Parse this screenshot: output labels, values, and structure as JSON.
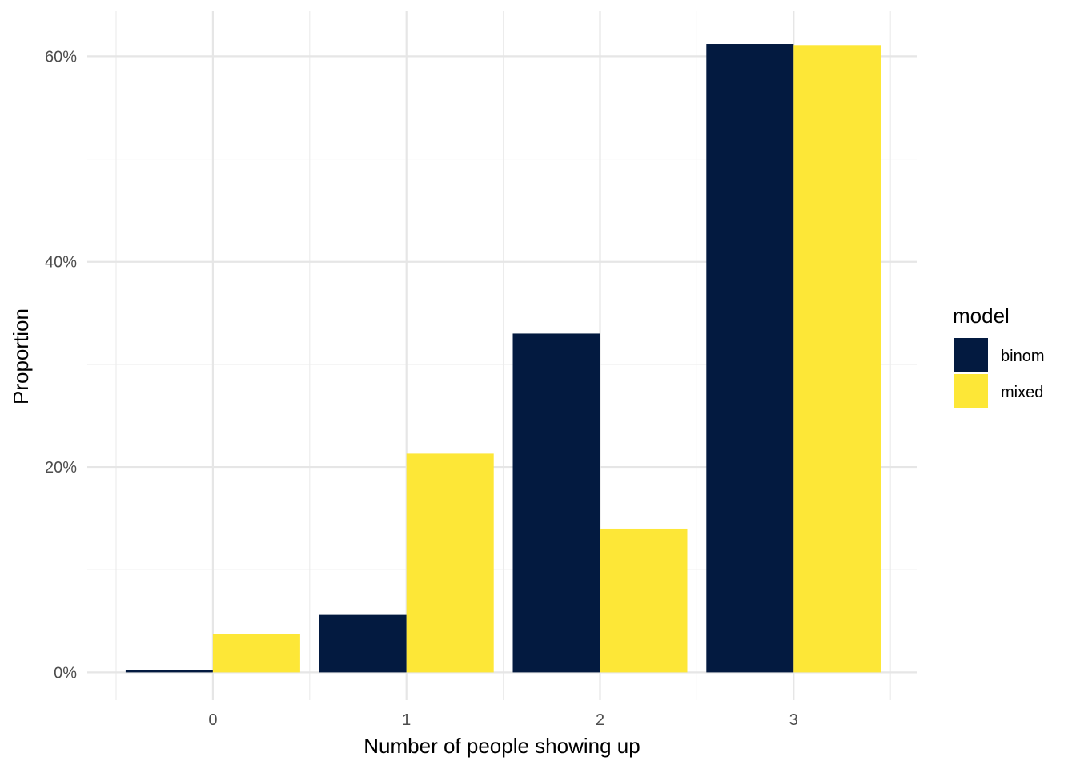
{
  "chart_data": {
    "type": "bar",
    "xlabel": "Number of people showing up",
    "ylabel": "Proportion",
    "categories": [
      "0",
      "1",
      "2",
      "3"
    ],
    "series": [
      {
        "name": "binom",
        "color": "#031a40",
        "values": [
          0.2,
          5.6,
          33.0,
          61.2
        ]
      },
      {
        "name": "mixed",
        "color": "#fde737",
        "values": [
          3.7,
          21.3,
          14.0,
          61.1
        ]
      }
    ],
    "ylim": [
      -2.7,
      64.4
    ],
    "y_ticks": [
      0,
      20,
      40,
      60
    ],
    "y_tick_labels": [
      "0%",
      "20%",
      "40%",
      "60%"
    ],
    "legend": {
      "title": "model",
      "placement": "right",
      "entries": [
        "binom",
        "mixed"
      ]
    },
    "grid": true,
    "background": "#ffffff"
  }
}
